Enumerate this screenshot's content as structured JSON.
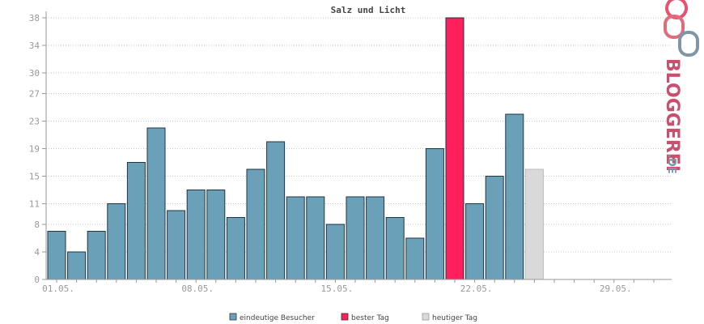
{
  "chart_data": {
    "type": "bar",
    "title": "Salz und Licht",
    "xlabel": "",
    "ylabel": "",
    "ylim": [
      0,
      38
    ],
    "y_ticks": [
      0,
      4,
      8,
      11,
      15,
      19,
      23,
      27,
      30,
      34,
      38
    ],
    "grid": true,
    "legend_position": "bottom-center",
    "x_tick_labels": [
      {
        "day": 1,
        "label": "01.05."
      },
      {
        "day": 8,
        "label": "08.05."
      },
      {
        "day": 15,
        "label": "15.05."
      },
      {
        "day": 22,
        "label": "22.05."
      },
      {
        "day": 29,
        "label": "29.05."
      }
    ],
    "days_in_month": 31,
    "series": [
      {
        "name": "eindeutige Besucher",
        "color": "#6aa1b8",
        "values": [
          7,
          4,
          7,
          11,
          17,
          22,
          10,
          13,
          13,
          9,
          16,
          20,
          12,
          12,
          8,
          12,
          12,
          9,
          6,
          19,
          null,
          11,
          15,
          24,
          null
        ]
      },
      {
        "name": "bester Tag",
        "color": "#ff1f5a",
        "values": [
          null,
          null,
          null,
          null,
          null,
          null,
          null,
          null,
          null,
          null,
          null,
          null,
          null,
          null,
          null,
          null,
          null,
          null,
          null,
          null,
          38,
          null,
          null,
          null,
          null
        ]
      },
      {
        "name": "heutiger Tag",
        "color": "#d9d9d9",
        "values": [
          null,
          null,
          null,
          null,
          null,
          null,
          null,
          null,
          null,
          null,
          null,
          null,
          null,
          null,
          null,
          null,
          null,
          null,
          null,
          null,
          null,
          null,
          null,
          null,
          16
        ]
      }
    ]
  },
  "logo": {
    "brand": "BLOGGEREI",
    "suffix": ".DE"
  }
}
